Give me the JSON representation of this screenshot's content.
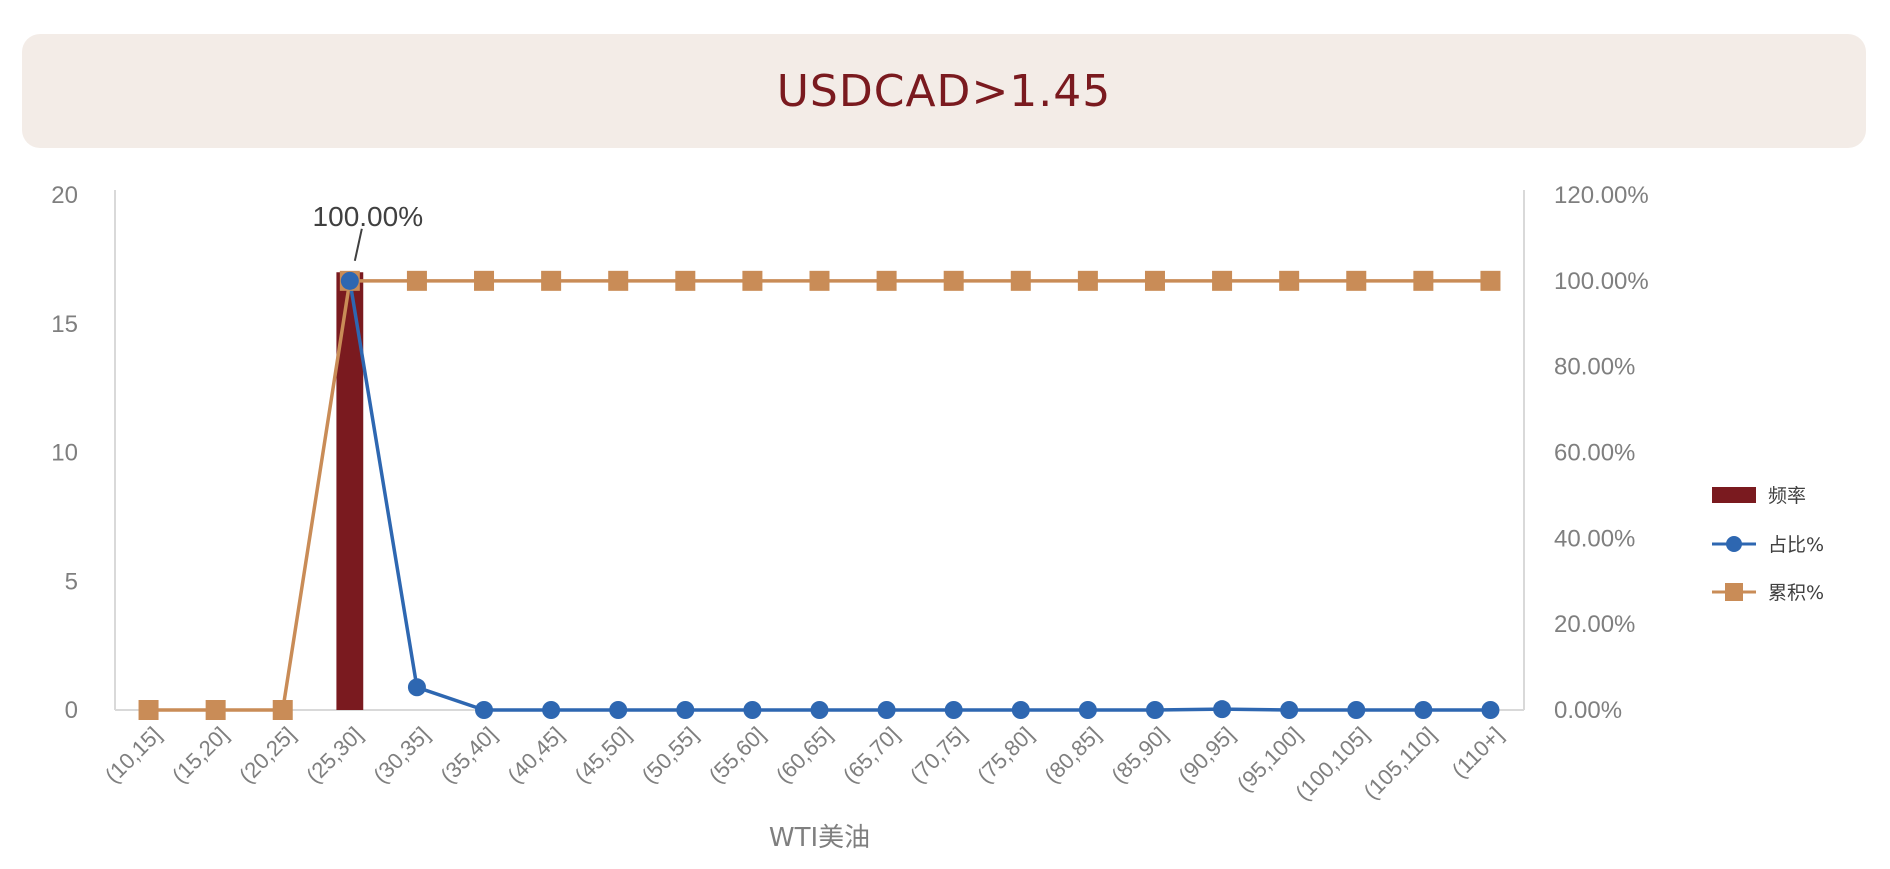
{
  "title": "USDCAD>1.45",
  "chart_data": {
    "type": "bar",
    "xlabel": "WTI美油",
    "categories": [
      "(10,15]",
      "(15,20]",
      "(20,25]",
      "(25,30]",
      "(30,35]",
      "(35,40]",
      "(40,45]",
      "(45,50]",
      "(50,55]",
      "(55,60]",
      "(60,65]",
      "(65,70]",
      "(70,75]",
      "(75,80]",
      "(80,85]",
      "(85,90]",
      "(90,95]",
      "(95,100]",
      "(100,105]",
      "(105,110]",
      "(110+]"
    ],
    "y_left": {
      "ylim": [
        0,
        20
      ],
      "ticks": [
        "0",
        "5",
        "10",
        "15",
        "20"
      ]
    },
    "y_right": {
      "ylim": [
        0,
        1.2
      ],
      "ticks": [
        "0.00%",
        "20.00%",
        "40.00%",
        "60.00%",
        "80.00%",
        "100.00%",
        "120.00%"
      ]
    },
    "series": [
      {
        "name": "频率",
        "type": "bar",
        "axis": "left",
        "color": "#7a1a1f",
        "values": [
          0,
          0,
          0,
          17,
          0,
          0,
          0,
          0,
          0,
          0,
          0,
          0,
          0,
          0,
          0,
          0,
          0,
          0,
          0,
          0,
          0
        ]
      },
      {
        "name": "占比%",
        "type": "line",
        "axis": "right",
        "marker": "circle",
        "color": "#2e67b1",
        "values": [
          null,
          null,
          null,
          1.0,
          0.053,
          0,
          0,
          0,
          0,
          0,
          0,
          0,
          0,
          0,
          0,
          0,
          0.002,
          0,
          0,
          0,
          0
        ]
      },
      {
        "name": "累积%",
        "type": "line",
        "axis": "right",
        "marker": "square",
        "color": "#c98c57",
        "values": [
          0,
          0,
          0,
          1.0,
          1.0,
          1.0,
          1.0,
          1.0,
          1.0,
          1.0,
          1.0,
          1.0,
          1.0,
          1.0,
          1.0,
          1.0,
          1.0,
          1.0,
          1.0,
          1.0,
          1.0
        ]
      }
    ],
    "annotations": [
      {
        "text": "100.00%",
        "category": "(25,30]",
        "series": "累积%"
      }
    ],
    "legend": [
      "频率",
      "占比%",
      "累积%"
    ],
    "legend_position": "right",
    "grid": false
  }
}
